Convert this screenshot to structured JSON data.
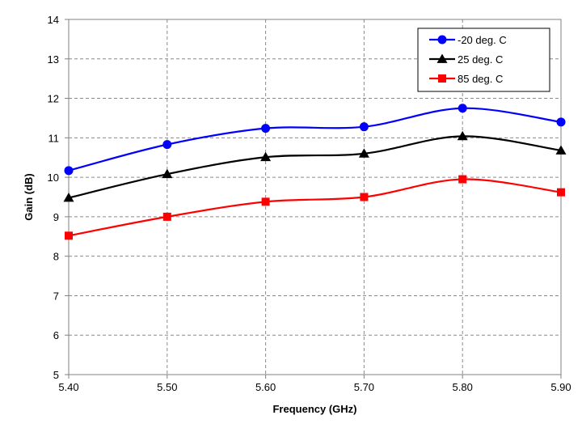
{
  "chart_data": {
    "type": "line",
    "title": "",
    "xlabel": "Frequency (GHz)",
    "ylabel": "Gain (dB)",
    "x": [
      5.4,
      5.5,
      5.6,
      5.7,
      5.8,
      5.9
    ],
    "x_tick_labels": [
      "5.40",
      "5.50",
      "5.60",
      "5.70",
      "5.80",
      "5.90"
    ],
    "y_tick_labels": [
      "5",
      "6",
      "7",
      "8",
      "9",
      "10",
      "11",
      "12",
      "13",
      "14"
    ],
    "xlim": [
      5.4,
      5.9
    ],
    "ylim": [
      5,
      14
    ],
    "grid": true,
    "legend_position": "top-right",
    "series": [
      {
        "name": "-20 deg. C",
        "color": "#0000ff",
        "marker": "circle",
        "values": [
          10.17,
          10.83,
          11.24,
          11.28,
          11.75,
          11.4
        ]
      },
      {
        "name": "25 deg. C",
        "color": "#000000",
        "marker": "triangle",
        "values": [
          9.48,
          10.08,
          10.51,
          10.6,
          11.04,
          10.68
        ]
      },
      {
        "name": "85 deg. C",
        "color": "#ff0000",
        "marker": "square",
        "values": [
          8.52,
          9.0,
          9.38,
          9.5,
          9.95,
          9.62
        ]
      }
    ]
  }
}
